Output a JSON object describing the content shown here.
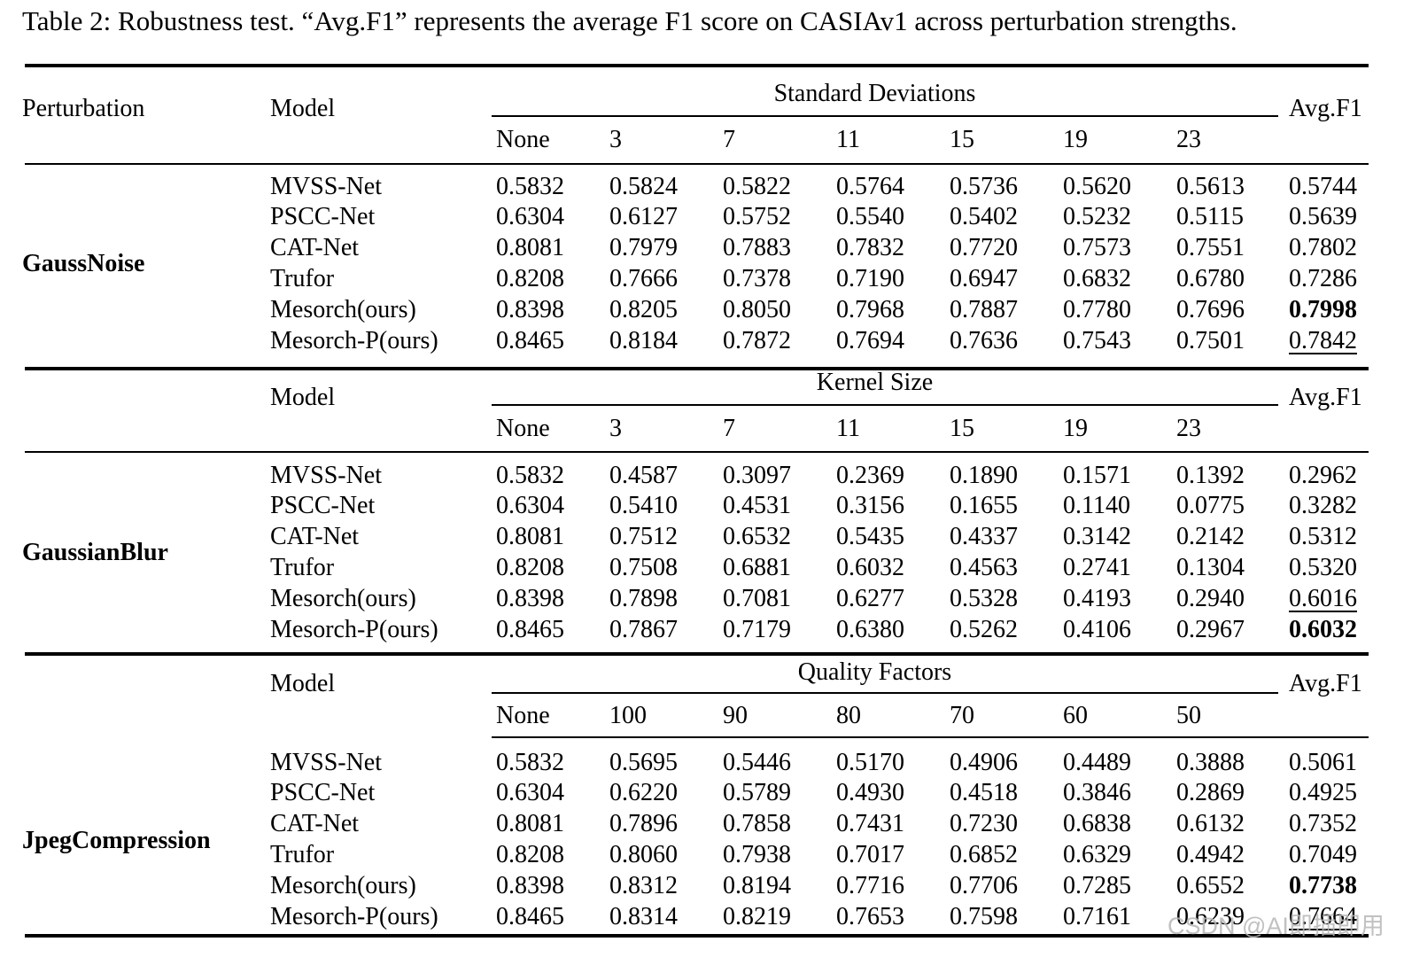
{
  "title": "Table 2: Robustness test. “Avg.F1” represents the average F1 score on CASIAv1 across perturbation strengths.",
  "watermark": "CSDN @AI即插即用",
  "header": {
    "perturbation": "Perturbation",
    "model": "Model",
    "avg_f1": "Avg.F1"
  },
  "sections": [
    {
      "perturbation": "GaussNoise",
      "group_label": "Standard Deviations",
      "strengths": [
        "None",
        "3",
        "7",
        "11",
        "15",
        "19",
        "23"
      ],
      "rows": [
        {
          "model": "MVSS-Net",
          "values": [
            "0.5832",
            "0.5824",
            "0.5822",
            "0.5764",
            "0.5736",
            "0.5620",
            "0.5613"
          ],
          "avg": "0.5744",
          "avg_style": "normal"
        },
        {
          "model": "PSCC-Net",
          "values": [
            "0.6304",
            "0.6127",
            "0.5752",
            "0.5540",
            "0.5402",
            "0.5232",
            "0.5115"
          ],
          "avg": "0.5639",
          "avg_style": "normal"
        },
        {
          "model": "CAT-Net",
          "values": [
            "0.8081",
            "0.7979",
            "0.7883",
            "0.7832",
            "0.7720",
            "0.7573",
            "0.7551"
          ],
          "avg": "0.7802",
          "avg_style": "normal"
        },
        {
          "model": "Trufor",
          "values": [
            "0.8208",
            "0.7666",
            "0.7378",
            "0.7190",
            "0.6947",
            "0.6832",
            "0.6780"
          ],
          "avg": "0.7286",
          "avg_style": "normal"
        },
        {
          "model": "Mesorch(ours)",
          "values": [
            "0.8398",
            "0.8205",
            "0.8050",
            "0.7968",
            "0.7887",
            "0.7780",
            "0.7696"
          ],
          "avg": "0.7998",
          "avg_style": "bold"
        },
        {
          "model": "Mesorch-P(ours)",
          "values": [
            "0.8465",
            "0.8184",
            "0.7872",
            "0.7694",
            "0.7636",
            "0.7543",
            "0.7501"
          ],
          "avg": "0.7842",
          "avg_style": "underline"
        }
      ]
    },
    {
      "perturbation": "GaussianBlur",
      "group_label": "Kernel Size",
      "strengths": [
        "None",
        "3",
        "7",
        "11",
        "15",
        "19",
        "23"
      ],
      "rows": [
        {
          "model": "MVSS-Net",
          "values": [
            "0.5832",
            "0.4587",
            "0.3097",
            "0.2369",
            "0.1890",
            "0.1571",
            "0.1392"
          ],
          "avg": "0.2962",
          "avg_style": "normal"
        },
        {
          "model": "PSCC-Net",
          "values": [
            "0.6304",
            "0.5410",
            "0.4531",
            "0.3156",
            "0.1655",
            "0.1140",
            "0.0775"
          ],
          "avg": "0.3282",
          "avg_style": "normal"
        },
        {
          "model": "CAT-Net",
          "values": [
            "0.8081",
            "0.7512",
            "0.6532",
            "0.5435",
            "0.4337",
            "0.3142",
            "0.2142"
          ],
          "avg": "0.5312",
          "avg_style": "normal"
        },
        {
          "model": "Trufor",
          "values": [
            "0.8208",
            "0.7508",
            "0.6881",
            "0.6032",
            "0.4563",
            "0.2741",
            "0.1304"
          ],
          "avg": "0.5320",
          "avg_style": "normal"
        },
        {
          "model": "Mesorch(ours)",
          "values": [
            "0.8398",
            "0.7898",
            "0.7081",
            "0.6277",
            "0.5328",
            "0.4193",
            "0.2940"
          ],
          "avg": "0.6016",
          "avg_style": "underline"
        },
        {
          "model": "Mesorch-P(ours)",
          "values": [
            "0.8465",
            "0.7867",
            "0.7179",
            "0.6380",
            "0.5262",
            "0.4106",
            "0.2967"
          ],
          "avg": "0.6032",
          "avg_style": "bold"
        }
      ]
    },
    {
      "perturbation": "JpegCompression",
      "group_label": "Quality Factors",
      "strengths": [
        "None",
        "100",
        "90",
        "80",
        "70",
        "60",
        "50"
      ],
      "rows": [
        {
          "model": "MVSS-Net",
          "values": [
            "0.5832",
            "0.5695",
            "0.5446",
            "0.5170",
            "0.4906",
            "0.4489",
            "0.3888"
          ],
          "avg": "0.5061",
          "avg_style": "normal"
        },
        {
          "model": "PSCC-Net",
          "values": [
            "0.6304",
            "0.6220",
            "0.5789",
            "0.4930",
            "0.4518",
            "0.3846",
            "0.2869"
          ],
          "avg": "0.4925",
          "avg_style": "normal"
        },
        {
          "model": "CAT-Net",
          "values": [
            "0.8081",
            "0.7896",
            "0.7858",
            "0.7431",
            "0.7230",
            "0.6838",
            "0.6132"
          ],
          "avg": "0.7352",
          "avg_style": "normal"
        },
        {
          "model": "Trufor",
          "values": [
            "0.8208",
            "0.8060",
            "0.7938",
            "0.7017",
            "0.6852",
            "0.6329",
            "0.4942"
          ],
          "avg": "0.7049",
          "avg_style": "normal"
        },
        {
          "model": "Mesorch(ours)",
          "values": [
            "0.8398",
            "0.8312",
            "0.8194",
            "0.7716",
            "0.7706",
            "0.7285",
            "0.6552"
          ],
          "avg": "0.7738",
          "avg_style": "bold"
        },
        {
          "model": "Mesorch-P(ours)",
          "values": [
            "0.8465",
            "0.8314",
            "0.8219",
            "0.7653",
            "0.7598",
            "0.7161",
            "0.6239"
          ],
          "avg": "0.7664",
          "avg_style": "underline"
        }
      ]
    }
  ]
}
